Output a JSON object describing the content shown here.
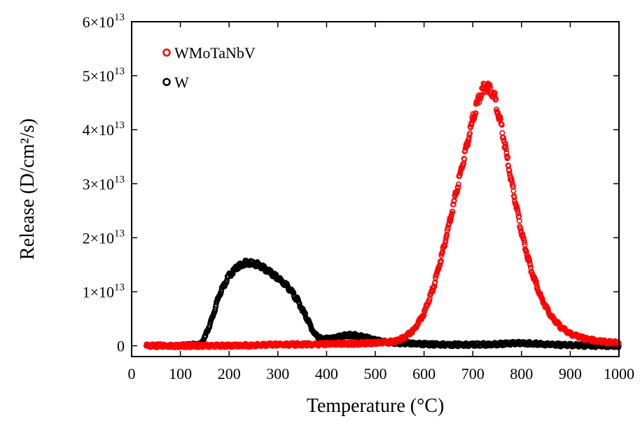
{
  "chart_data": {
    "type": "scatter",
    "title": "",
    "xlabel": "Temperature (°C)",
    "ylabel": "Release (D/cm²/s)",
    "xlim": [
      0,
      1000
    ],
    "ylim": [
      -2000000000000.0,
      60000000000000.0
    ],
    "x_ticks": [
      0,
      100,
      200,
      300,
      400,
      500,
      600,
      700,
      800,
      900,
      1000
    ],
    "x_tick_labels": [
      "0",
      "100",
      "200",
      "300",
      "400",
      "500",
      "600",
      "700",
      "800",
      "900",
      "1000"
    ],
    "y_ticks": [
      0,
      10000000000000.0,
      20000000000000.0,
      30000000000000.0,
      40000000000000.0,
      50000000000000.0,
      60000000000000.0
    ],
    "y_tick_labels": [
      {
        "mant": "0",
        "exp": ""
      },
      {
        "mant": "1×10",
        "exp": "13"
      },
      {
        "mant": "2×10",
        "exp": "13"
      },
      {
        "mant": "3×10",
        "exp": "13"
      },
      {
        "mant": "4×10",
        "exp": "13"
      },
      {
        "mant": "5×10",
        "exp": "13"
      },
      {
        "mant": "6×10",
        "exp": "13"
      }
    ],
    "grid": false,
    "legend_position": "top-left",
    "series": [
      {
        "name": "W",
        "color": "#000000",
        "marker": "open-circle",
        "points": [
          [
            30,
            0
          ],
          [
            100,
            0
          ],
          [
            140,
            200000000000.0
          ],
          [
            150,
            1500000000000.0
          ],
          [
            165,
            5000000000000.0
          ],
          [
            180,
            9500000000000.0
          ],
          [
            200,
            13000000000000.0
          ],
          [
            220,
            14800000000000.0
          ],
          [
            240,
            15500000000000.0
          ],
          [
            260,
            15000000000000.0
          ],
          [
            280,
            13800000000000.0
          ],
          [
            300,
            12500000000000.0
          ],
          [
            320,
            11000000000000.0
          ],
          [
            340,
            8500000000000.0
          ],
          [
            360,
            5000000000000.0
          ],
          [
            375,
            2200000000000.0
          ],
          [
            390,
            1200000000000.0
          ],
          [
            410,
            1300000000000.0
          ],
          [
            430,
            1700000000000.0
          ],
          [
            445,
            2000000000000.0
          ],
          [
            460,
            1900000000000.0
          ],
          [
            480,
            1500000000000.0
          ],
          [
            500,
            1000000000000.0
          ],
          [
            520,
            700000000000.0
          ],
          [
            550,
            500000000000.0
          ],
          [
            600,
            300000000000.0
          ],
          [
            650,
            200000000000.0
          ],
          [
            700,
            200000000000.0
          ],
          [
            750,
            300000000000.0
          ],
          [
            800,
            500000000000.0
          ],
          [
            830,
            400000000000.0
          ],
          [
            860,
            200000000000.0
          ],
          [
            900,
            100000000000.0
          ],
          [
            950,
            0
          ],
          [
            1000,
            0
          ]
        ]
      },
      {
        "name": "WMoTaNbV",
        "color": "#ff0000",
        "marker": "open-circle",
        "points": [
          [
            30,
            0
          ],
          [
            100,
            0
          ],
          [
            200,
            0
          ],
          [
            300,
            200000000000.0
          ],
          [
            400,
            300000000000.0
          ],
          [
            500,
            500000000000.0
          ],
          [
            540,
            800000000000.0
          ],
          [
            560,
            1500000000000.0
          ],
          [
            580,
            3000000000000.0
          ],
          [
            600,
            6000000000000.0
          ],
          [
            620,
            11000000000000.0
          ],
          [
            640,
            18000000000000.0
          ],
          [
            660,
            26000000000000.0
          ],
          [
            680,
            34000000000000.0
          ],
          [
            700,
            42000000000000.0
          ],
          [
            715,
            46500000000000.0
          ],
          [
            725,
            48000000000000.0
          ],
          [
            735,
            47800000000000.0
          ],
          [
            745,
            46000000000000.0
          ],
          [
            760,
            40000000000000.0
          ],
          [
            780,
            30000000000000.0
          ],
          [
            800,
            21000000000000.0
          ],
          [
            820,
            14000000000000.0
          ],
          [
            840,
            9000000000000.0
          ],
          [
            860,
            5500000000000.0
          ],
          [
            880,
            3500000000000.0
          ],
          [
            900,
            2200000000000.0
          ],
          [
            930,
            1300000000000.0
          ],
          [
            960,
            800000000000.0
          ],
          [
            1000,
            500000000000.0
          ]
        ]
      }
    ]
  },
  "legend": [
    {
      "label": "WMoTaNbV",
      "color": "#ff0000"
    },
    {
      "label": "W",
      "color": "#000000"
    }
  ]
}
